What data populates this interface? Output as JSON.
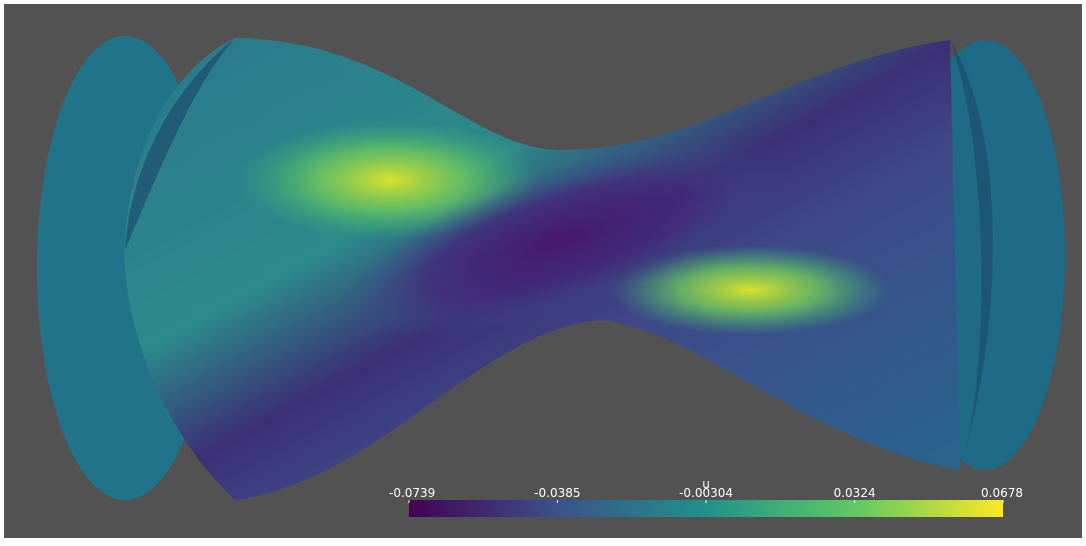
{
  "colorbar": {
    "title": "u",
    "range": [
      -0.0739,
      0.0678
    ],
    "ticks": [
      -0.0739,
      -0.0385,
      -0.00304,
      0.0324,
      0.0678
    ],
    "colors": [
      "#440154",
      "#3b528b",
      "#21918c",
      "#5ec962",
      "#fde725"
    ]
  }
}
